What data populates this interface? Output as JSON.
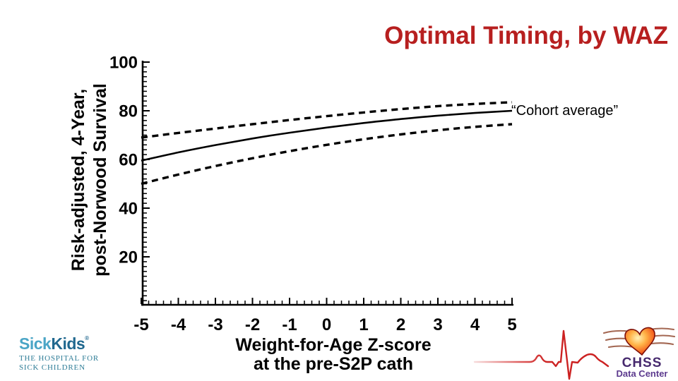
{
  "slide": {
    "title": "Optimal Timing, by WAZ",
    "title_color": "#b71f1f",
    "background": "#ffffff"
  },
  "chart_data": {
    "type": "line",
    "title": "",
    "xlabel": [
      "Weight-for-Age Z-score",
      "at the pre-S2P cath"
    ],
    "ylabel": [
      "Risk-adjusted, 4-Year,",
      "post-Norwood Survival"
    ],
    "xlim": [
      -5,
      5
    ],
    "ylim": [
      0,
      100
    ],
    "x_ticks": [
      -5,
      -4,
      -3,
      -2,
      -1,
      0,
      1,
      2,
      3,
      4,
      5
    ],
    "y_ticks": [
      20,
      40,
      60,
      80,
      100
    ],
    "x_minor_step": 0.2,
    "y_minor_step": 2,
    "grid": false,
    "legend": "none",
    "line_color": "#000000",
    "annotation": {
      "text": "“Cohort average”",
      "x": 5,
      "y": 80,
      "attached_to": "cohort-average"
    },
    "x": [
      -5,
      -4,
      -3,
      -2,
      -1,
      0,
      1,
      2,
      3,
      4,
      5
    ],
    "series": [
      {
        "name": "cohort-average",
        "style": "solid",
        "values": [
          59.5,
          62.9,
          65.9,
          68.6,
          71.0,
          73.1,
          75.0,
          76.6,
          78.0,
          79.1,
          80.0
        ]
      },
      {
        "name": "upper-confidence-band",
        "style": "dashed",
        "values": [
          69.0,
          70.9,
          72.7,
          74.5,
          76.2,
          77.8,
          79.3,
          80.7,
          81.9,
          82.8,
          83.5
        ]
      },
      {
        "name": "lower-confidence-band",
        "style": "dashed",
        "values": [
          50.0,
          53.8,
          57.3,
          60.5,
          63.4,
          66.0,
          68.3,
          70.3,
          72.0,
          73.4,
          74.5
        ]
      }
    ]
  },
  "logos": {
    "sickkids": {
      "word_part1": "Sick",
      "word_part2": "Kids",
      "registered": "®",
      "tagline_line1": "THE HOSPITAL FOR",
      "tagline_line2": "SICK CHILDREN",
      "color_part1": "#4aa5c6",
      "color_part2": "#20688f",
      "tagline_color": "#2f7d97"
    },
    "chss": {
      "name": "CHSS",
      "subtitle": "Data Center",
      "name_color": "#472a6e",
      "subtitle_color": "#5c3a8e",
      "ecg_color": "#cc2222",
      "heart_colors": [
        "#fff2b8",
        "#ffb347",
        "#f4601e",
        "#c81e10"
      ]
    }
  }
}
